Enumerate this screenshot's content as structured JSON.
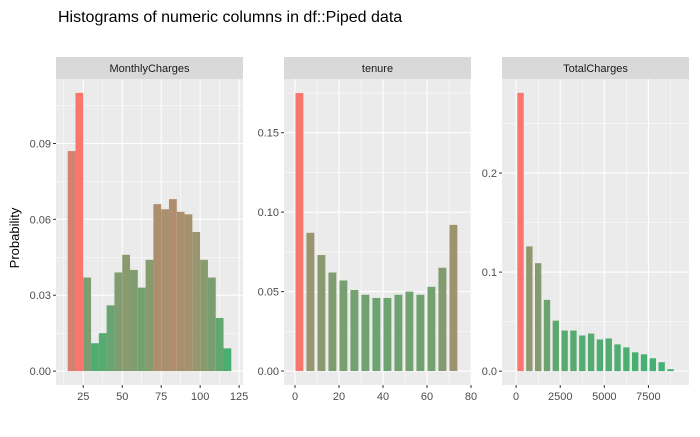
{
  "title": "Histograms of numeric columns in df::Piped data",
  "ylabel": "Probability",
  "colors": {
    "panel_bg": "#EBEBEB",
    "strip_bg": "#D9D9D9",
    "grid": "#FFFFFF",
    "low": "#F8766D",
    "high": "#3CB371"
  },
  "chart_data": [
    {
      "type": "bar",
      "facet": "MonthlyCharges",
      "bin_width": 5,
      "x": [
        17.5,
        22.5,
        27.5,
        32.5,
        37.5,
        42.5,
        47.5,
        52.5,
        57.5,
        62.5,
        67.5,
        72.5,
        77.5,
        82.5,
        87.5,
        92.5,
        97.5,
        102.5,
        107.5,
        112.5,
        117.5
      ],
      "values": [
        0.087,
        0.11,
        0.037,
        0.011,
        0.015,
        0.026,
        0.039,
        0.046,
        0.04,
        0.033,
        0.044,
        0.066,
        0.064,
        0.068,
        0.063,
        0.062,
        0.055,
        0.044,
        0.037,
        0.021,
        0.009
      ],
      "xlim": [
        7.5,
        127.5
      ],
      "ylim": [
        -0.0055,
        0.1155
      ],
      "xticks": [
        25,
        50,
        75,
        100,
        125
      ],
      "yticks": [
        0.0,
        0.03,
        0.06,
        0.09
      ],
      "xticklabels": [
        "25",
        "50",
        "75",
        "100",
        "125"
      ],
      "yticklabels": [
        "0.00",
        "0.03",
        "0.06",
        "0.09"
      ]
    },
    {
      "type": "bar",
      "facet": "tenure",
      "bin_width": 3.6,
      "x": [
        2,
        7,
        12,
        17,
        22,
        27,
        32,
        37,
        42,
        47,
        52,
        57,
        62,
        67,
        72
      ],
      "values": [
        0.175,
        0.087,
        0.073,
        0.062,
        0.057,
        0.051,
        0.048,
        0.046,
        0.046,
        0.048,
        0.05,
        0.048,
        0.053,
        0.065,
        0.092
      ],
      "xlim": [
        -5,
        80
      ],
      "ylim": [
        -0.0088,
        0.1838
      ],
      "xticks": [
        0,
        20,
        40,
        60,
        80
      ],
      "yticks": [
        0.0,
        0.05,
        0.1,
        0.15
      ],
      "xticklabels": [
        "0",
        "20",
        "40",
        "60",
        "80"
      ],
      "yticklabels": [
        "0.00",
        "0.05",
        "0.10",
        "0.15"
      ]
    },
    {
      "type": "bar",
      "facet": "TotalCharges",
      "bin_width": 360,
      "x": [
        250,
        750,
        1250,
        1750,
        2250,
        2750,
        3250,
        3750,
        4250,
        4750,
        5250,
        5750,
        6250,
        6750,
        7250,
        7750,
        8250,
        8750
      ],
      "values": [
        0.281,
        0.126,
        0.109,
        0.072,
        0.051,
        0.041,
        0.041,
        0.036,
        0.038,
        0.032,
        0.033,
        0.027,
        0.024,
        0.019,
        0.017,
        0.013,
        0.009,
        0.002
      ],
      "xlim": [
        -800,
        9800
      ],
      "ylim": [
        -0.014,
        0.295
      ],
      "xticks": [
        0,
        2500,
        5000,
        7500
      ],
      "yticks": [
        0.0,
        0.1,
        0.2
      ],
      "xticklabels": [
        "0",
        "2500",
        "5000",
        "7500"
      ],
      "yticklabels": [
        "0.0",
        "0.1",
        "0.2"
      ]
    }
  ]
}
